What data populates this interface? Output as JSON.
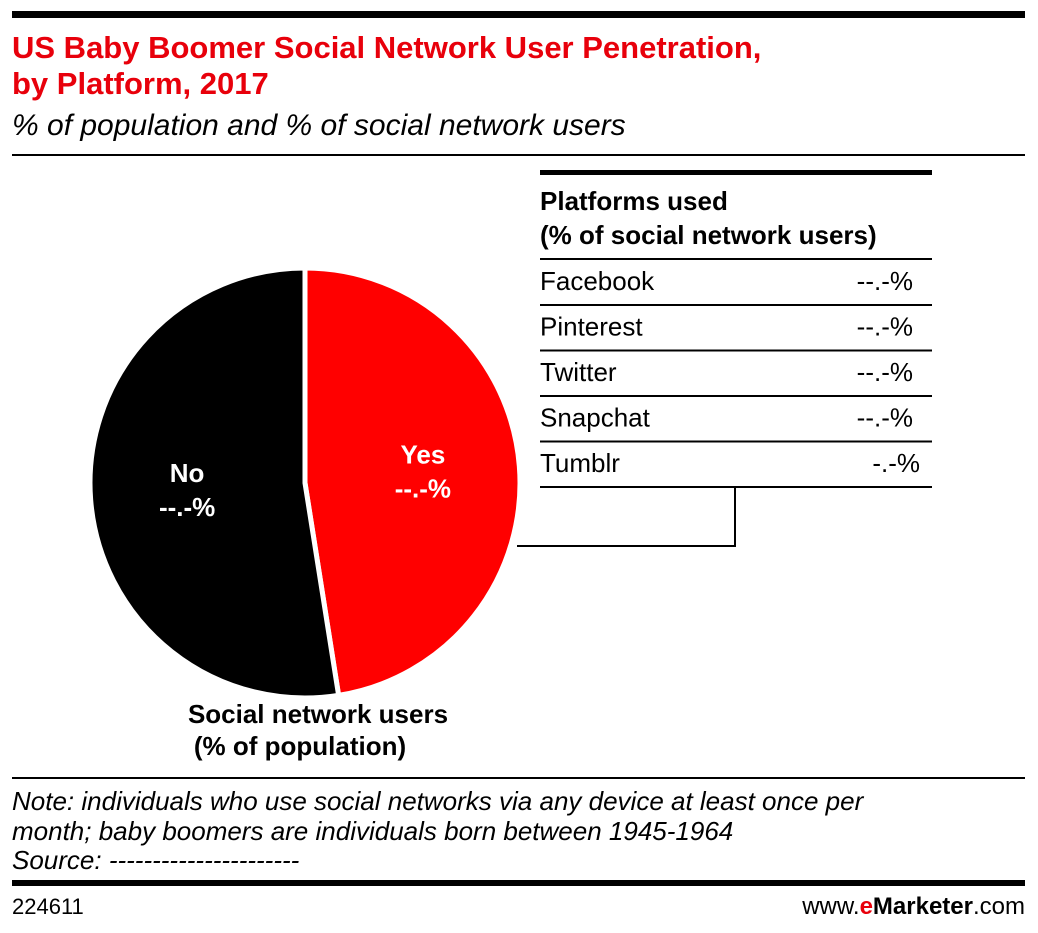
{
  "chart_data": {
    "type": "pie",
    "title": [
      "US Baby Boomer Social Network User Penetration,",
      "by Platform, 2017"
    ],
    "subtitle": "% of population and % of social network users",
    "categories": [
      "Yes",
      "No"
    ],
    "values": [
      47.5,
      52.5
    ],
    "value_labels": [
      "--.-%",
      "--.-%"
    ],
    "colors": [
      "#ff0000",
      "#000000"
    ],
    "caption": [
      "Social network users",
      "(% of population)"
    ]
  },
  "table": {
    "header": [
      "Platforms used",
      "(% of social network users)"
    ],
    "rows": [
      [
        "Facebook",
        "--.-%"
      ],
      [
        "Pinterest",
        "--.-%"
      ],
      [
        "Twitter",
        "--.-%"
      ],
      [
        "Snapchat",
        "--.-%"
      ],
      [
        "Tumblr",
        "-.-%"
      ]
    ]
  },
  "footer": {
    "note": [
      "Note: individuals who use social networks via any device at least once per",
      "month; baby boomers are individuals born between 1945-1964"
    ],
    "source": "Source: ----------------------",
    "id": "224611",
    "brand": {
      "prefix": "www.",
      "e": "e",
      "name": "Marketer",
      "suffix": ".com"
    }
  }
}
